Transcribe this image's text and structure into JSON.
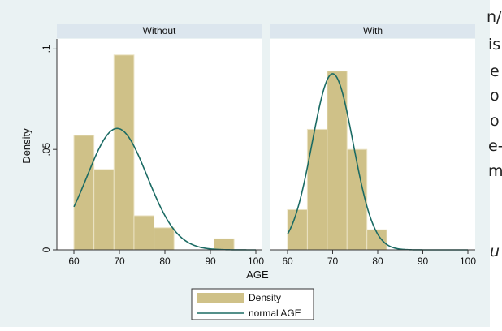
{
  "background_text": {
    "fragments": [
      "n/",
      "is",
      "e",
      "o",
      "o",
      "e-",
      "m",
      "u"
    ]
  },
  "chart_data": {
    "type": "histogram",
    "xlabel": "AGE",
    "ylabel": "Density",
    "x_ticks": [
      60,
      70,
      80,
      90,
      100
    ],
    "y_ticks": [
      0,
      0.05,
      0.1
    ],
    "y_tick_labels": [
      "0",
      ".05",
      ".1"
    ],
    "xlim": [
      56,
      101
    ],
    "ylim": [
      0,
      0.105
    ],
    "bin_width": 4.4,
    "legend": {
      "placement": "bottom",
      "entries": [
        "Density",
        "normal AGE"
      ]
    },
    "colors": {
      "bar_fill": "#cfc188",
      "bar_stroke": "#ebe3c4",
      "curve": "#1b6b64",
      "panel_header": "#dce6ee"
    },
    "panels": [
      {
        "title": "Without",
        "bins": [
          {
            "x0": 60.0,
            "x1": 64.4,
            "density": 0.057
          },
          {
            "x0": 64.4,
            "x1": 68.8,
            "density": 0.04
          },
          {
            "x0": 68.8,
            "x1": 73.2,
            "density": 0.097
          },
          {
            "x0": 73.2,
            "x1": 77.6,
            "density": 0.017
          },
          {
            "x0": 77.6,
            "x1": 82.0,
            "density": 0.011
          },
          {
            "x0": 90.8,
            "x1": 95.2,
            "density": 0.0055
          }
        ],
        "normal": {
          "mean": 69.5,
          "sd": 6.6
        }
      },
      {
        "title": "With",
        "bins": [
          {
            "x0": 60.0,
            "x1": 64.4,
            "density": 0.02
          },
          {
            "x0": 64.4,
            "x1": 68.8,
            "density": 0.06
          },
          {
            "x0": 68.8,
            "x1": 73.2,
            "density": 0.089
          },
          {
            "x0": 73.2,
            "x1": 77.6,
            "density": 0.05
          },
          {
            "x0": 77.6,
            "x1": 82.0,
            "density": 0.01
          }
        ],
        "normal": {
          "mean": 70.0,
          "sd": 4.55
        }
      }
    ]
  }
}
